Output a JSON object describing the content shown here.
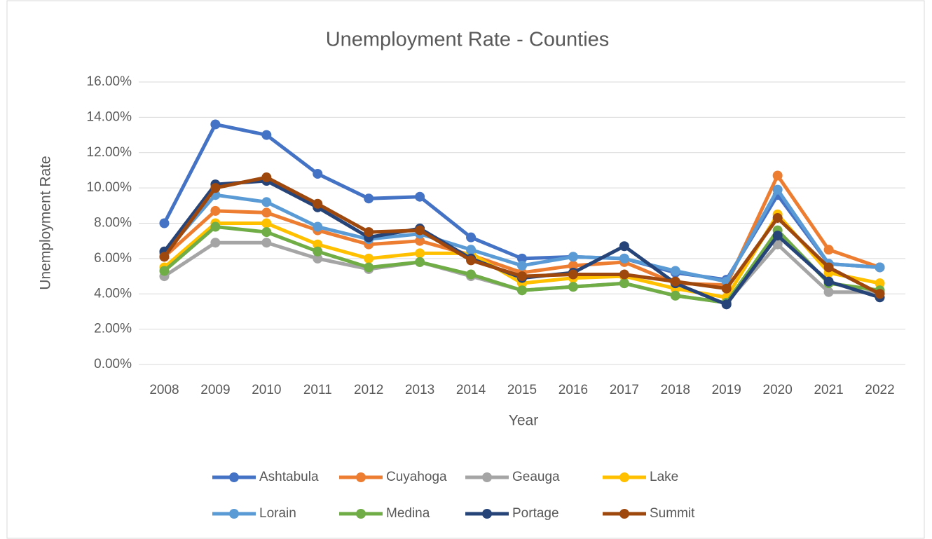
{
  "chart_data": {
    "type": "line",
    "title": "Unemployment Rate - Counties",
    "x_label": "Year",
    "y_label": "Unemployment Rate",
    "categories": [
      "2008",
      "2009",
      "2010",
      "2011",
      "2012",
      "2013",
      "2014",
      "2015",
      "2016",
      "2017",
      "2018",
      "2019",
      "2020",
      "2021",
      "2022"
    ],
    "ylim": [
      0,
      16
    ],
    "yticks": [
      {
        "value": 0,
        "label": "0.00%"
      },
      {
        "value": 2,
        "label": "2.00%"
      },
      {
        "value": 4,
        "label": "4.00%"
      },
      {
        "value": 6,
        "label": "6.00%"
      },
      {
        "value": 8,
        "label": "8.00%"
      },
      {
        "value": 10,
        "label": "10.00%"
      },
      {
        "value": 12,
        "label": "12.00%"
      },
      {
        "value": 14,
        "label": "14.00%"
      },
      {
        "value": 16,
        "label": "16.00%"
      }
    ],
    "grid": true,
    "legend": "bottom",
    "series": [
      {
        "name": "Ashtabula",
        "color": "#4472c4",
        "values": [
          8.0,
          13.6,
          13.0,
          10.8,
          9.4,
          9.5,
          7.2,
          6.0,
          6.1,
          6.0,
          5.2,
          4.8,
          9.6,
          5.7,
          5.5
        ]
      },
      {
        "name": "Cuyahoga",
        "color": "#ed7d31",
        "values": [
          6.1,
          8.7,
          8.6,
          7.6,
          6.8,
          7.0,
          6.2,
          5.2,
          5.6,
          5.8,
          4.6,
          4.5,
          10.7,
          6.5,
          5.5
        ]
      },
      {
        "name": "Geauga",
        "color": "#a5a5a5",
        "values": [
          5.0,
          6.9,
          6.9,
          6.0,
          5.4,
          5.8,
          5.0,
          4.2,
          4.4,
          4.6,
          3.9,
          3.5,
          6.8,
          4.1,
          4.1
        ]
      },
      {
        "name": "Lake",
        "color": "#ffc000",
        "values": [
          5.5,
          8.0,
          8.0,
          6.8,
          6.0,
          6.3,
          6.3,
          4.6,
          4.9,
          5.0,
          4.3,
          3.8,
          8.5,
          5.2,
          4.6
        ]
      },
      {
        "name": "Lorain",
        "color": "#5b9bd5",
        "values": [
          6.3,
          9.6,
          9.2,
          7.8,
          7.1,
          7.4,
          6.5,
          5.6,
          6.1,
          6.0,
          5.3,
          4.7,
          9.9,
          5.7,
          5.5
        ]
      },
      {
        "name": "Medina",
        "color": "#70ad47",
        "values": [
          5.3,
          7.8,
          7.5,
          6.4,
          5.5,
          5.8,
          5.1,
          4.2,
          4.4,
          4.6,
          3.9,
          3.5,
          7.6,
          4.6,
          4.2
        ]
      },
      {
        "name": "Portage",
        "color": "#264478",
        "values": [
          6.4,
          10.2,
          10.4,
          8.9,
          7.2,
          7.7,
          6.0,
          4.9,
          5.2,
          6.7,
          4.6,
          3.4,
          7.3,
          4.7,
          3.8
        ]
      },
      {
        "name": "Summit",
        "color": "#9e480e",
        "values": [
          6.1,
          10.0,
          10.6,
          9.1,
          7.5,
          7.6,
          5.9,
          5.0,
          5.1,
          5.1,
          4.7,
          4.3,
          8.3,
          5.5,
          4.0
        ]
      }
    ]
  }
}
